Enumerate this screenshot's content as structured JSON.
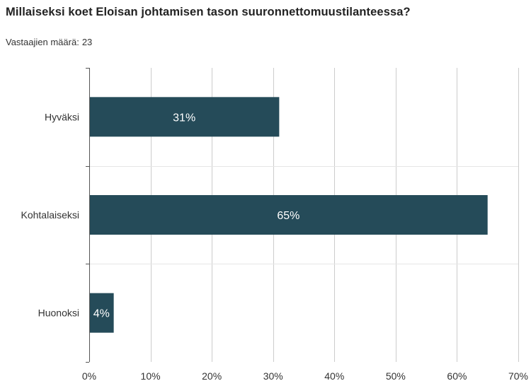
{
  "title": "Millaiseksi koet Eloisan johtamisen tason suuronnettomuustilanteessa?",
  "respondents_label": "Vastaajien määrä:",
  "respondents_count": "23",
  "colors": {
    "bar": "#254b59",
    "bar_label": "#ffffff",
    "grid": "#cccccc",
    "axis": "#555555",
    "text": "#333333"
  },
  "chart_data": {
    "type": "bar",
    "orientation": "horizontal",
    "categories": [
      "Hyväksi",
      "Kohtalaiseksi",
      "Huonoksi"
    ],
    "values": [
      31,
      65,
      4
    ],
    "data_labels": [
      "31%",
      "65%",
      "4%"
    ],
    "xlim": [
      0,
      70
    ],
    "xticks": [
      0,
      10,
      20,
      30,
      40,
      50,
      60,
      70
    ],
    "xtick_labels": [
      "0%",
      "10%",
      "20%",
      "30%",
      "40%",
      "50%",
      "60%",
      "70%"
    ],
    "grid": true,
    "legend": "none"
  }
}
